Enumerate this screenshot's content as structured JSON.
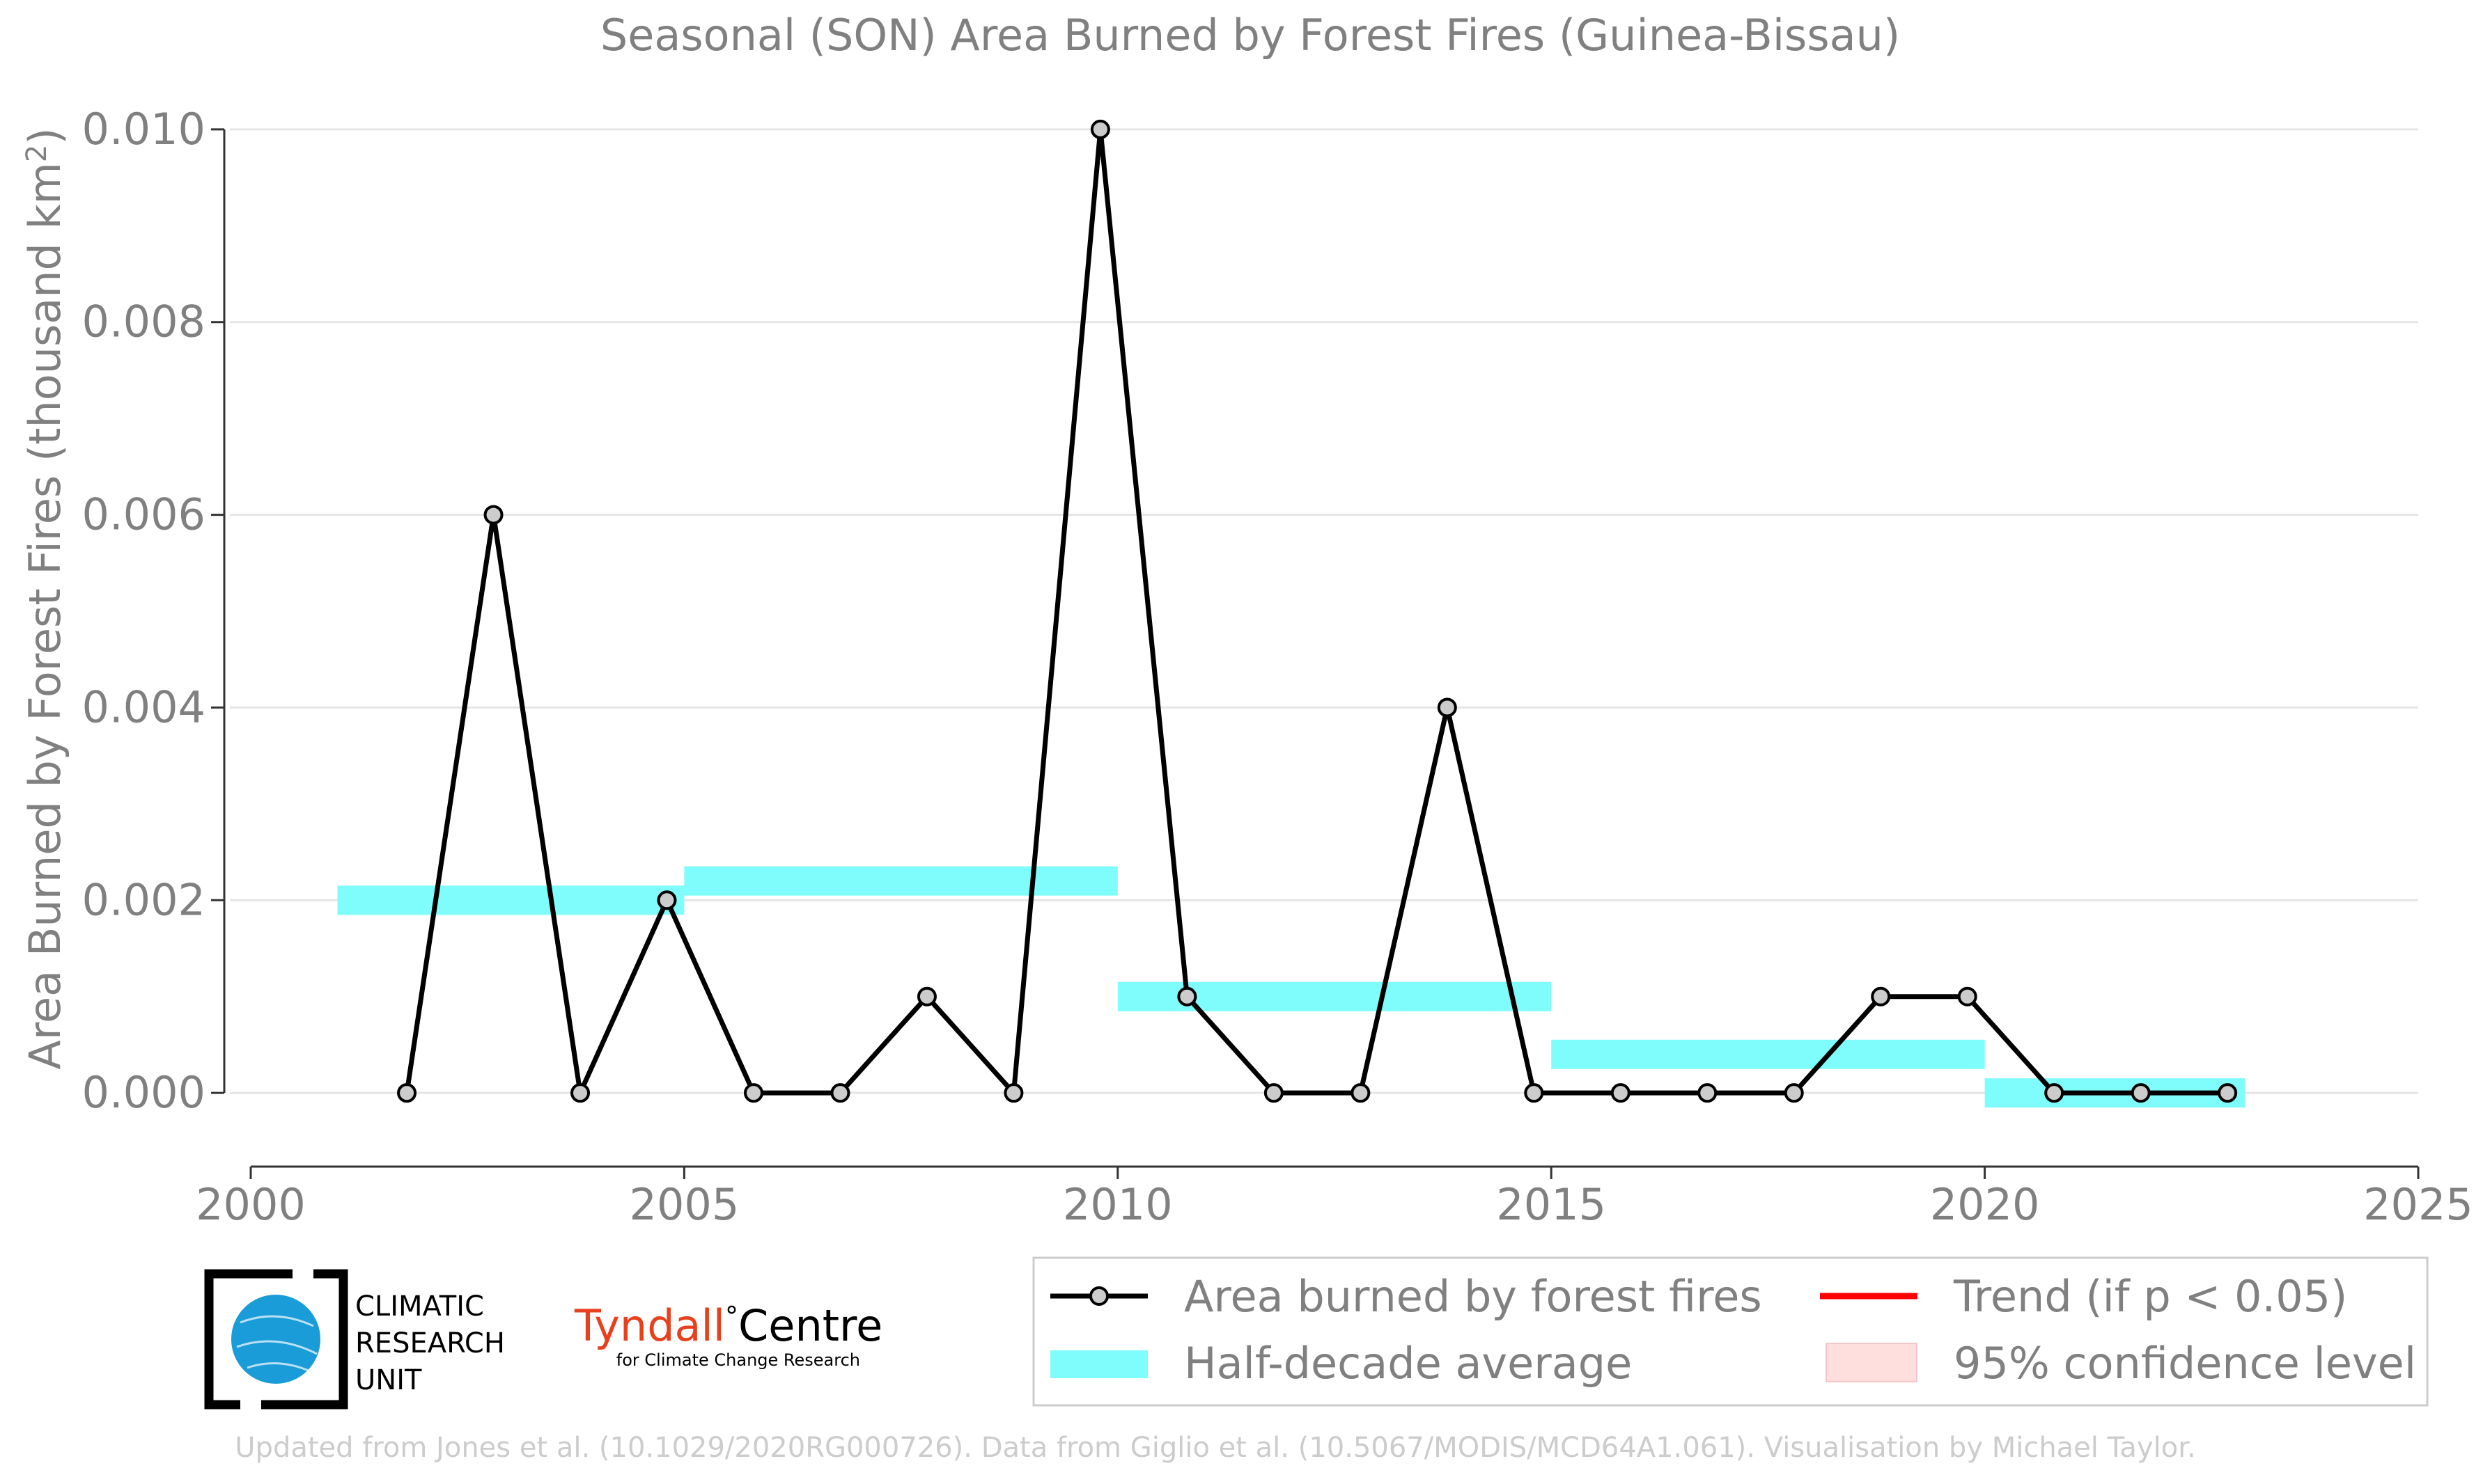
{
  "chart_data": {
    "type": "line",
    "title": "Seasonal (SON) Area Burned by Forest Fires (Guinea-Bissau)",
    "xlabel": "",
    "ylabel": "Area Burned by Forest Fires (thousand km²)",
    "xlim": [
      2000,
      2025
    ],
    "ylim": [
      -0.00075,
      0.0101
    ],
    "x_ticks": [
      2000,
      2005,
      2010,
      2015,
      2020,
      2025
    ],
    "y_ticks": [
      0.0,
      0.002,
      0.004,
      0.006,
      0.008,
      0.01
    ],
    "y_tick_labels": [
      "0.000",
      "0.002",
      "0.004",
      "0.006",
      "0.008",
      "0.010"
    ],
    "grid": "horizontal",
    "series": [
      {
        "name": "Area burned by forest fires",
        "color": "#000000",
        "marker_fill": "#cccccc",
        "x": [
          2001.8,
          2002.8,
          2003.8,
          2004.8,
          2005.8,
          2006.8,
          2007.8,
          2008.8,
          2009.8,
          2010.8,
          2011.8,
          2012.8,
          2013.8,
          2014.8,
          2015.8,
          2016.8,
          2017.8,
          2018.8,
          2019.8,
          2020.8,
          2021.8,
          2022.8
        ],
        "values": [
          0.0,
          0.006,
          0.0,
          0.002,
          0.0,
          0.0,
          0.001,
          0.0,
          0.01,
          0.001,
          0.0,
          0.0,
          0.004,
          0.0,
          0.0,
          0.0,
          0.0,
          0.001,
          0.001,
          0.0,
          0.0,
          0.0
        ]
      },
      {
        "name": "Half-decade average",
        "color": "#7ffcfc",
        "type": "step-band",
        "segments": [
          {
            "x0": 2001,
            "x1": 2005,
            "value": 0.002
          },
          {
            "x0": 2005,
            "x1": 2010,
            "value": 0.0022
          },
          {
            "x0": 2010,
            "x1": 2015,
            "value": 0.001
          },
          {
            "x0": 2015,
            "x1": 2020,
            "value": 0.0004
          },
          {
            "x0": 2020,
            "x1": 2023,
            "value": 0.0
          }
        ]
      }
    ],
    "legend": {
      "placement": "bottom-right",
      "entries": [
        {
          "label": "Area burned by forest fires",
          "kind": "line-marker",
          "color": "#000000"
        },
        {
          "label": "Trend (if p < 0.05)",
          "kind": "line",
          "color": "#ff0000"
        },
        {
          "label": "Half-decade average",
          "kind": "band",
          "color": "#7ffcfc"
        },
        {
          "label": "95% confidence level",
          "kind": "patch",
          "color": "#ffdede"
        }
      ]
    }
  },
  "logos": {
    "cru": {
      "lines": [
        "CLIMATIC",
        "RESEARCH",
        "UNIT"
      ],
      "color": "#1a9cd8"
    },
    "tyndall": {
      "name_a": "Tyndall",
      "degree": "°",
      "name_b": "Centre",
      "subtitle": "for Climate Change Research",
      "color_a": "#e8401c"
    }
  },
  "credit": "Updated from Jones et al. (10.1029/2020RG000726). Data from Giglio et al. (10.5067/MODIS/MCD64A1.061). Visualisation by Michael Taylor."
}
